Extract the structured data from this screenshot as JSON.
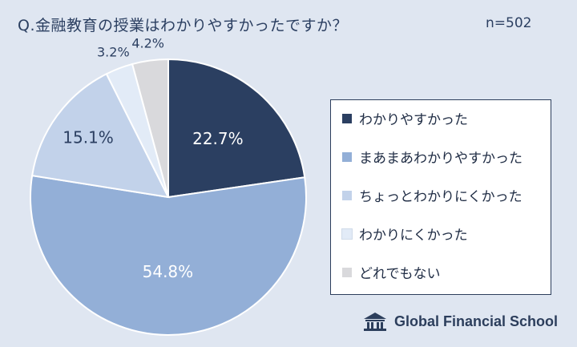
{
  "header": {
    "title": "Q.金融教育の授業はわかりやすかったですか？",
    "sample_size": "n=502"
  },
  "chart_data": {
    "type": "pie",
    "title": "Q.金融教育の授業はわかりやすかったですか？",
    "legend_position": "right",
    "slices": [
      {
        "label": "わかりやすかった",
        "value": 22.7,
        "display": "22.7%",
        "color": "#2b3f61",
        "text_color": "#ffffff"
      },
      {
        "label": "まあまあわかりやすかった",
        "value": 54.8,
        "display": "54.8%",
        "color": "#93afd7",
        "text_color": "#ffffff"
      },
      {
        "label": "ちょっとわかりにくかった",
        "value": 15.1,
        "display": "15.1%",
        "color": "#c2d2ea",
        "text_color": "#2b3f61"
      },
      {
        "label": "わかりにくかった",
        "value": 3.2,
        "display": "3.2%",
        "color": "#e2ebf7",
        "text_color": "#2b3f61"
      },
      {
        "label": "どれでもない",
        "value": 4.2,
        "display": "4.2%",
        "color": "#d9d9dc",
        "text_color": "#2b3f61"
      }
    ]
  },
  "brand": {
    "name": "Global Financial School",
    "logo_icon": "school-building-icon",
    "color": "#2c3e5c"
  }
}
